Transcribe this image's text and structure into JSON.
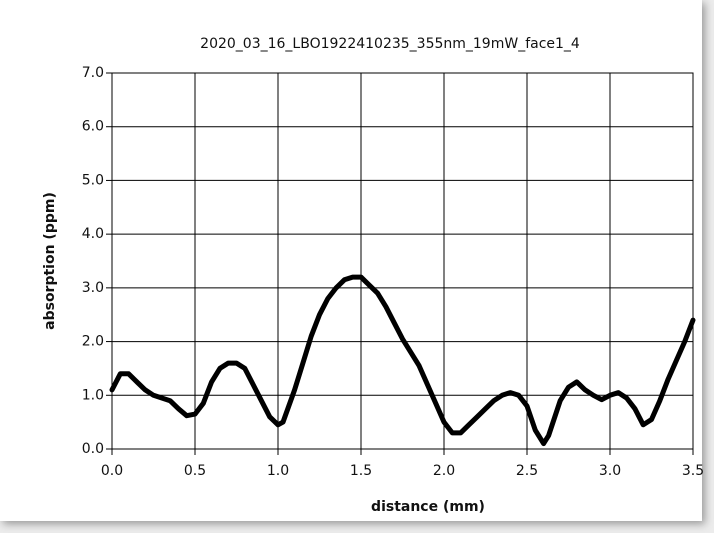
{
  "chart_data": {
    "type": "line",
    "title": "2020_03_16_LBO1922410235_355nm_19mW_face1_4",
    "x_label": "distance (mm)",
    "y_label": "absorption (ppm)",
    "color": "#000000",
    "grid": true,
    "xlim": [
      0,
      3.5
    ],
    "ylim": [
      0,
      7
    ],
    "xticks": [
      {
        "value": 0,
        "label": "0.0"
      },
      {
        "value": 0.5,
        "label": "0.5"
      },
      {
        "value": 1,
        "label": "1.0"
      },
      {
        "value": 1.5,
        "label": "1.5"
      },
      {
        "value": 2,
        "label": "2.0"
      },
      {
        "value": 2.5,
        "label": "2.5"
      },
      {
        "value": 3,
        "label": "3.0"
      },
      3.5
    ],
    "yticks": [
      {
        "value": 0,
        "label": "0.0"
      },
      {
        "value": 1,
        "label": "1.0"
      },
      {
        "value": 2,
        "label": "2.0"
      },
      {
        "value": 3,
        "label": "3.0"
      },
      {
        "value": 4,
        "label": "4.0"
      },
      {
        "value": 5,
        "label": "5.0"
      },
      {
        "value": 6,
        "label": "6.0"
      },
      {
        "value": 7,
        "label": "7.0"
      }
    ],
    "x": [
      0,
      0.05,
      0.1,
      0.15,
      0.2,
      0.25,
      0.3,
      0.35,
      0.4,
      0.45,
      0.5,
      0.55,
      0.6,
      0.65,
      0.7,
      0.75,
      0.8,
      0.85,
      0.9,
      0.95,
      1.0,
      1.03,
      1.1,
      1.15,
      1.2,
      1.25,
      1.3,
      1.35,
      1.4,
      1.45,
      1.5,
      1.55,
      1.6,
      1.65,
      1.7,
      1.75,
      1.8,
      1.85,
      1.9,
      1.95,
      2.0,
      2.05,
      2.1,
      2.15,
      2.2,
      2.25,
      2.3,
      2.35,
      2.4,
      2.45,
      2.5,
      2.55,
      2.6,
      2.63,
      2.7,
      2.75,
      2.8,
      2.85,
      2.9,
      2.95,
      3.0,
      3.05,
      3.1,
      3.15,
      3.2,
      3.25,
      3.3,
      3.35,
      3.4,
      3.45,
      3.5
    ],
    "values": [
      1.1,
      1.4,
      1.4,
      1.25,
      1.1,
      1.0,
      0.95,
      0.9,
      0.75,
      0.62,
      0.65,
      0.85,
      1.25,
      1.5,
      1.6,
      1.6,
      1.5,
      1.2,
      0.9,
      0.6,
      0.45,
      0.5,
      1.1,
      1.6,
      2.1,
      2.5,
      2.8,
      3.0,
      3.15,
      3.2,
      3.2,
      3.05,
      2.9,
      2.65,
      2.35,
      2.05,
      1.8,
      1.55,
      1.2,
      0.85,
      0.5,
      0.3,
      0.3,
      0.45,
      0.6,
      0.75,
      0.9,
      1.0,
      1.05,
      1.0,
      0.8,
      0.35,
      0.1,
      0.25,
      0.9,
      1.15,
      1.25,
      1.1,
      1.0,
      0.92,
      1.0,
      1.05,
      0.95,
      0.75,
      0.45,
      0.55,
      0.9,
      1.3,
      1.65,
      2.0,
      2.4
    ]
  }
}
